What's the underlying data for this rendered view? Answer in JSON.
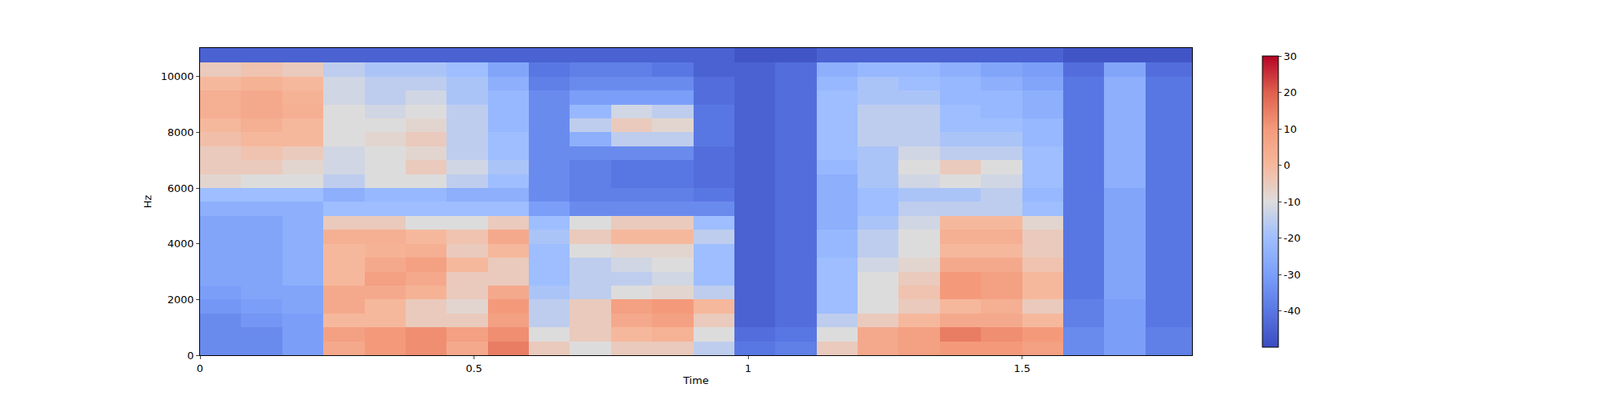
{
  "chart_data": {
    "type": "heatmap",
    "xlabel": "Time",
    "ylabel": "Hz",
    "xlim": [
      0,
      1.81
    ],
    "ylim": [
      0,
      11025
    ],
    "xticks": [
      0,
      0.5,
      1,
      1.5
    ],
    "yticks": [
      0,
      2000,
      4000,
      6000,
      8000,
      10000
    ],
    "x": [
      0,
      0.075,
      0.15,
      0.225,
      0.3,
      0.375,
      0.45,
      0.525,
      0.6,
      0.675,
      0.75,
      0.825,
      0.9,
      0.975,
      1.05,
      1.125,
      1.2,
      1.275,
      1.35,
      1.425,
      1.5,
      1.575,
      1.65,
      1.725,
      1.81
    ],
    "y": [
      0,
      500,
      1000,
      1500,
      2000,
      2500,
      3000,
      3500,
      4000,
      4500,
      5000,
      5500,
      6000,
      6500,
      7000,
      7500,
      8000,
      8500,
      9000,
      9500,
      10000,
      10500,
      11025
    ],
    "cells": [
      [
        -35,
        -35,
        -30,
        5,
        10,
        12,
        5,
        15,
        -5,
        -10,
        -5,
        -5,
        -15,
        -40,
        -38,
        -5,
        5,
        8,
        10,
        10,
        8,
        -35,
        -30,
        -38
      ],
      [
        -35,
        -35,
        -30,
        8,
        10,
        12,
        8,
        12,
        -10,
        -5,
        0,
        2,
        -10,
        -42,
        -40,
        -10,
        5,
        8,
        15,
        12,
        10,
        -35,
        -30,
        -38
      ],
      [
        -35,
        -32,
        -30,
        0,
        0,
        -5,
        -5,
        8,
        -15,
        -5,
        5,
        8,
        -5,
        -45,
        -42,
        -15,
        -5,
        0,
        5,
        5,
        0,
        -38,
        -30,
        -40
      ],
      [
        -32,
        -30,
        -28,
        5,
        0,
        -5,
        -8,
        10,
        -15,
        -5,
        8,
        10,
        0,
        -45,
        -42,
        -20,
        -10,
        -5,
        0,
        3,
        -5,
        -38,
        -30,
        -40
      ],
      [
        -30,
        -28,
        -28,
        5,
        5,
        2,
        -5,
        5,
        -18,
        -15,
        -10,
        -8,
        -15,
        -45,
        -42,
        -20,
        -10,
        -3,
        10,
        8,
        0,
        -40,
        -28,
        -40
      ],
      [
        -28,
        -28,
        -25,
        0,
        8,
        5,
        -5,
        -5,
        -20,
        -15,
        -15,
        -12,
        -20,
        -45,
        -42,
        -20,
        -10,
        -5,
        10,
        8,
        0,
        -40,
        -28,
        -40
      ],
      [
        -28,
        -28,
        -25,
        0,
        5,
        8,
        0,
        -5,
        -20,
        -15,
        -12,
        -10,
        -20,
        -45,
        -42,
        -20,
        -12,
        -8,
        5,
        5,
        -3,
        -40,
        -28,
        -40
      ],
      [
        -28,
        -28,
        -25,
        0,
        2,
        3,
        -5,
        0,
        -20,
        -10,
        -8,
        -8,
        -20,
        -45,
        -42,
        -22,
        -15,
        -10,
        0,
        0,
        -5,
        -40,
        -28,
        -40
      ],
      [
        -28,
        -28,
        -25,
        3,
        3,
        0,
        -3,
        5,
        -18,
        -5,
        0,
        0,
        -15,
        -45,
        -42,
        -22,
        -15,
        -10,
        3,
        3,
        -5,
        -40,
        -28,
        -40
      ],
      [
        -28,
        -28,
        -25,
        -5,
        -5,
        -10,
        -10,
        -5,
        -20,
        -10,
        -5,
        -5,
        -20,
        -45,
        -42,
        -25,
        -18,
        -12,
        0,
        0,
        -8,
        -40,
        -28,
        -40
      ],
      [
        -25,
        -25,
        -25,
        -20,
        -20,
        -20,
        -20,
        -20,
        -30,
        -35,
        -35,
        -35,
        -35,
        -45,
        -42,
        -25,
        -20,
        -15,
        -15,
        -15,
        -20,
        -40,
        -28,
        -40
      ],
      [
        -20,
        -20,
        -20,
        -25,
        -22,
        -22,
        -25,
        -25,
        -35,
        -38,
        -38,
        -38,
        -40,
        -45,
        -42,
        -25,
        -20,
        -18,
        -18,
        -15,
        -22,
        -40,
        -28,
        -40
      ],
      [
        -8,
        -10,
        -10,
        -15,
        -10,
        -10,
        -15,
        -20,
        -35,
        -38,
        -40,
        -40,
        -42,
        -45,
        -42,
        -25,
        -18,
        -12,
        -10,
        -12,
        -20,
        -40,
        -25,
        -40
      ],
      [
        -5,
        -5,
        -8,
        -12,
        -10,
        -5,
        -12,
        -18,
        -35,
        -38,
        -40,
        -40,
        -42,
        -45,
        -42,
        -22,
        -18,
        -10,
        -5,
        -10,
        -20,
        -40,
        -25,
        -40
      ],
      [
        -5,
        -3,
        -5,
        -12,
        -10,
        -8,
        -15,
        -20,
        -35,
        -35,
        -35,
        -35,
        -42,
        -45,
        -42,
        -20,
        -18,
        -12,
        -15,
        -15,
        -20,
        -40,
        -25,
        -40
      ],
      [
        -2,
        0,
        0,
        -10,
        -8,
        -5,
        -15,
        -20,
        -35,
        -25,
        -15,
        -15,
        -40,
        -45,
        -42,
        -20,
        -15,
        -15,
        -18,
        -18,
        -22,
        -40,
        -25,
        -40
      ],
      [
        0,
        3,
        0,
        -10,
        -10,
        -8,
        -15,
        -22,
        -35,
        -15,
        -5,
        -8,
        -40,
        -45,
        -42,
        -20,
        -15,
        -15,
        -20,
        -20,
        -22,
        -40,
        -25,
        -40
      ],
      [
        3,
        5,
        3,
        -10,
        -12,
        -10,
        -15,
        -22,
        -35,
        -22,
        -12,
        -15,
        -40,
        -45,
        -42,
        -20,
        -15,
        -15,
        -20,
        -22,
        -25,
        -40,
        -25,
        -40
      ],
      [
        3,
        5,
        2,
        -12,
        -15,
        -12,
        -18,
        -22,
        -35,
        -30,
        -30,
        -30,
        -42,
        -45,
        -42,
        -20,
        -18,
        -18,
        -22,
        -22,
        -25,
        -40,
        -25,
        -40
      ],
      [
        0,
        2,
        0,
        -12,
        -15,
        -15,
        -18,
        -25,
        -38,
        -35,
        -35,
        -35,
        -42,
        -45,
        -42,
        -22,
        -18,
        -20,
        -22,
        -25,
        -28,
        -40,
        -25,
        -40
      ],
      [
        -5,
        -3,
        -5,
        -15,
        -18,
        -18,
        -20,
        -28,
        -40,
        -38,
        -38,
        -40,
        -45,
        -45,
        -42,
        -25,
        -22,
        -22,
        -25,
        -28,
        -30,
        -42,
        -28,
        -42
      ],
      [
        -45,
        -45,
        -45,
        -45,
        -45,
        -45,
        -45,
        -45,
        -45,
        -45,
        -45,
        -45,
        -45,
        -48,
        -48,
        -45,
        -45,
        -45,
        -45,
        -45,
        -45,
        -48,
        -48,
        -48
      ]
    ],
    "colorbar_range": [
      -50,
      30
    ],
    "colorbar_ticks": [
      30,
      20,
      10,
      0,
      -10,
      -20,
      -30,
      -40
    ]
  }
}
